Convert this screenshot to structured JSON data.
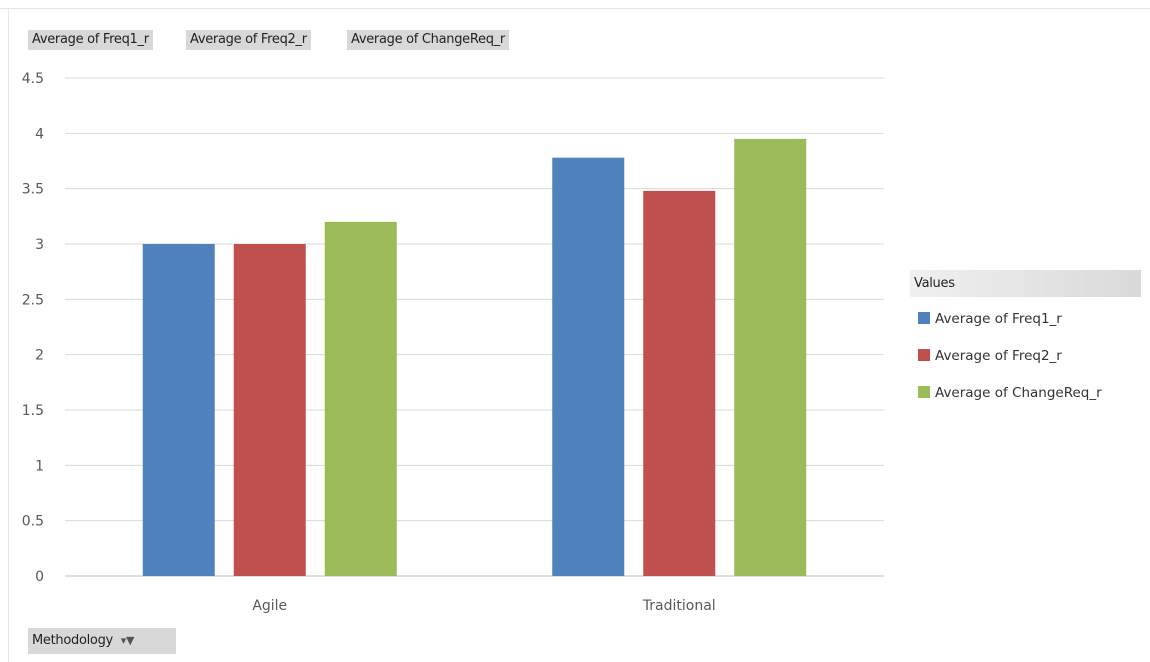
{
  "pivot": {
    "value_fields": [
      "Average of Freq1_r",
      "Average of Freq2_r",
      "Average of ChangeReq_r"
    ],
    "legend_title": "Values",
    "axis_field": "Methodology",
    "axis_field_controls": "▾▼"
  },
  "chart_data": {
    "type": "bar",
    "title": "",
    "xlabel": "",
    "ylabel": "",
    "categories": [
      "Agile",
      "Traditional"
    ],
    "series": [
      {
        "name": "Average of Freq1_r",
        "color": "#4f81bd",
        "values": [
          3.0,
          3.78
        ]
      },
      {
        "name": "Average of Freq2_r",
        "color": "#c0504d",
        "values": [
          3.0,
          3.48
        ]
      },
      {
        "name": "Average of ChangeReq_r",
        "color": "#9bbb59",
        "values": [
          3.2,
          3.95
        ]
      }
    ],
    "ylim": [
      0,
      4.5
    ],
    "yticks": [
      0,
      0.5,
      1,
      1.5,
      2,
      2.5,
      3,
      3.5,
      4,
      4.5
    ],
    "ytick_labels": [
      "0",
      "0.5",
      "1",
      "1.5",
      "2",
      "2.5",
      "3",
      "3.5",
      "4",
      "4.5"
    ],
    "grid": true,
    "legend_position": "right"
  }
}
